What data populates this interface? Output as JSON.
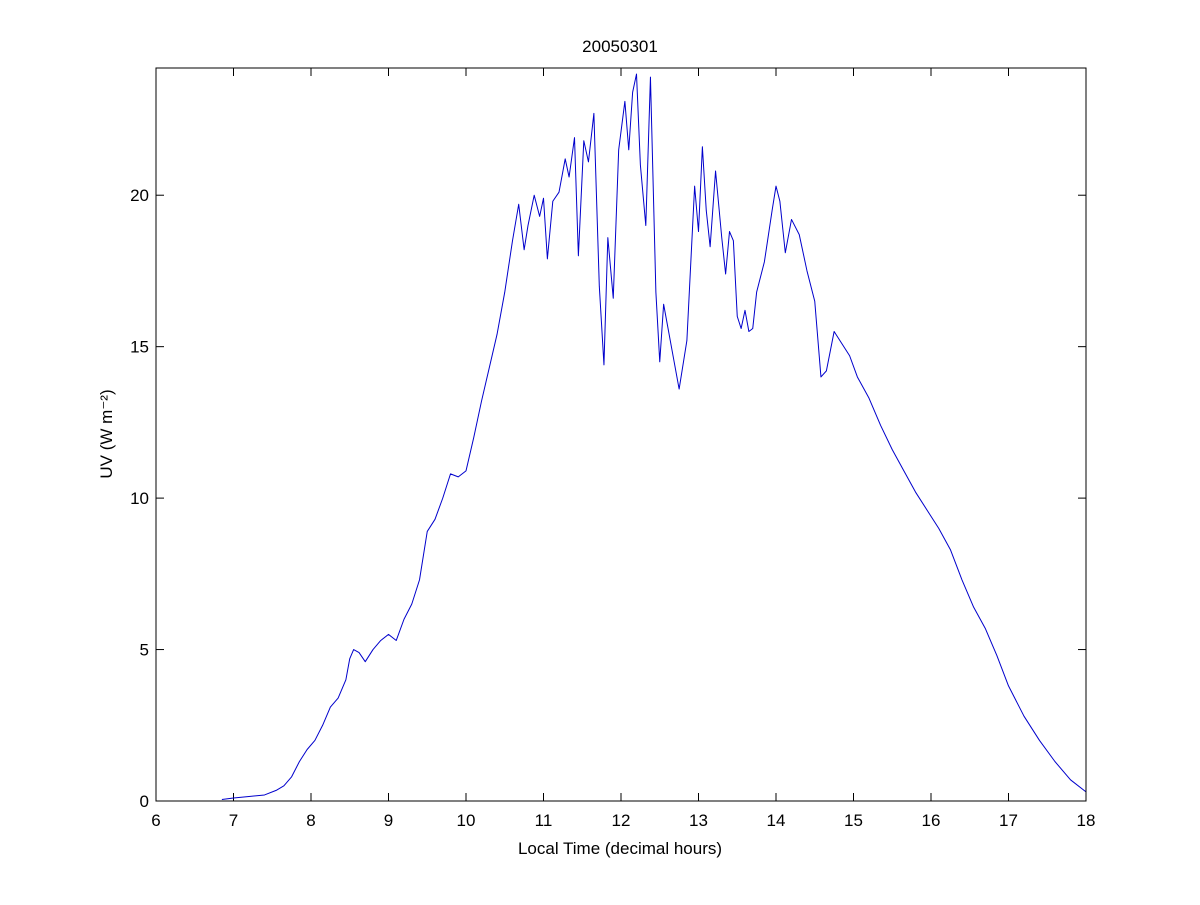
{
  "chart_data": {
    "type": "line",
    "title": "20050301",
    "xlabel": "Local Time (decimal hours)",
    "ylabel": "UV (W m⁻²)",
    "xlim": [
      6,
      18
    ],
    "ylim": [
      0,
      24.2
    ],
    "xticks": [
      6,
      7,
      8,
      9,
      10,
      11,
      12,
      13,
      14,
      15,
      16,
      17,
      18
    ],
    "yticks": [
      0,
      5,
      10,
      15,
      20
    ],
    "grid": false,
    "series": [
      {
        "color": "#0000cc",
        "x": [
          6.85,
          7.0,
          7.2,
          7.4,
          7.55,
          7.65,
          7.75,
          7.85,
          7.95,
          8.05,
          8.15,
          8.25,
          8.35,
          8.45,
          8.5,
          8.55,
          8.62,
          8.7,
          8.8,
          8.9,
          9.0,
          9.1,
          9.2,
          9.3,
          9.4,
          9.5,
          9.6,
          9.7,
          9.8,
          9.9,
          10.0,
          10.1,
          10.2,
          10.3,
          10.4,
          10.5,
          10.6,
          10.68,
          10.75,
          10.8,
          10.88,
          10.95,
          11.0,
          11.05,
          11.12,
          11.2,
          11.28,
          11.33,
          11.4,
          11.45,
          11.52,
          11.58,
          11.65,
          11.72,
          11.78,
          11.83,
          11.9,
          11.97,
          12.05,
          12.1,
          12.15,
          12.2,
          12.25,
          12.32,
          12.38,
          12.45,
          12.5,
          12.55,
          12.65,
          12.75,
          12.85,
          12.95,
          13.0,
          13.05,
          13.1,
          13.15,
          13.22,
          13.3,
          13.35,
          13.4,
          13.45,
          13.5,
          13.55,
          13.6,
          13.65,
          13.7,
          13.75,
          13.85,
          13.95,
          14.0,
          14.05,
          14.12,
          14.2,
          14.3,
          14.4,
          14.5,
          14.58,
          14.65,
          14.75,
          14.85,
          14.95,
          15.05,
          15.2,
          15.35,
          15.5,
          15.65,
          15.8,
          15.95,
          16.1,
          16.25,
          16.4,
          16.55,
          16.7,
          16.85,
          17.0,
          17.2,
          17.4,
          17.6,
          17.8,
          18.0
        ],
        "values": [
          0.05,
          0.1,
          0.15,
          0.2,
          0.35,
          0.5,
          0.8,
          1.3,
          1.7,
          2.0,
          2.5,
          3.1,
          3.4,
          4.0,
          4.7,
          5.0,
          4.9,
          4.6,
          5.0,
          5.3,
          5.5,
          5.3,
          6.0,
          6.5,
          7.3,
          8.9,
          9.3,
          10.0,
          10.8,
          10.7,
          10.9,
          12.0,
          13.2,
          14.3,
          15.4,
          16.8,
          18.5,
          19.7,
          18.2,
          19.0,
          20.0,
          19.3,
          19.9,
          17.9,
          19.8,
          20.1,
          21.2,
          20.6,
          21.9,
          18.0,
          21.8,
          21.1,
          22.7,
          17.0,
          14.4,
          18.6,
          16.6,
          21.5,
          23.1,
          21.5,
          23.4,
          24.0,
          21.0,
          19.0,
          23.9,
          16.8,
          14.5,
          16.4,
          15.0,
          13.6,
          15.2,
          20.3,
          18.8,
          21.6,
          19.5,
          18.3,
          20.8,
          18.6,
          17.4,
          18.8,
          18.5,
          16.0,
          15.6,
          16.2,
          15.5,
          15.6,
          16.8,
          17.8,
          19.5,
          20.3,
          19.8,
          18.1,
          19.2,
          18.7,
          17.5,
          16.5,
          14.0,
          14.2,
          15.5,
          15.1,
          14.7,
          14.0,
          13.3,
          12.4,
          11.6,
          10.9,
          10.2,
          9.6,
          9.0,
          8.3,
          7.3,
          6.4,
          5.7,
          4.8,
          3.8,
          2.8,
          2.0,
          1.3,
          0.7,
          0.3
        ]
      }
    ]
  }
}
